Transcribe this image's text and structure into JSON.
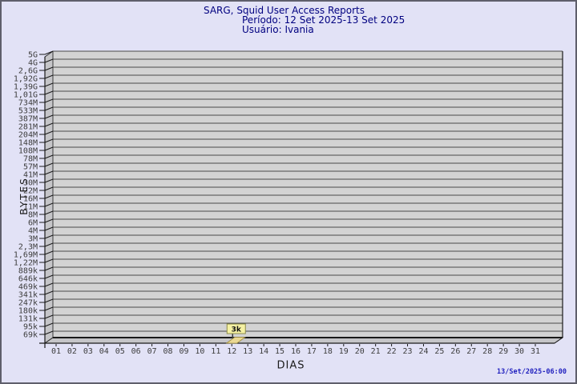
{
  "header": {
    "title": "SARG, Squid User Access Reports",
    "period": "Período: 12 Set 2025-13 Set 2025",
    "user": "Usuário: Ivania"
  },
  "footer": {
    "generated": "13/Set/2025-06:00"
  },
  "chart_data": {
    "type": "bar",
    "projection": "3d",
    "title": "SARG, Squid User Access Reports",
    "subtitle": "Período: 12 Set 2025-13 Set 2025",
    "user_label": "Usuário: Ivania",
    "xlabel": "DIAS",
    "ylabel": "BYTES",
    "y_scale": "log",
    "grid": true,
    "y_tick_labels": [
      "5G",
      "4G",
      "2,6G",
      "1,92G",
      "1,39G",
      "1,01G",
      "734M",
      "533M",
      "387M",
      "281M",
      "204M",
      "148M",
      "108M",
      "78M",
      "57M",
      "41M",
      "30M",
      "22M",
      "16M",
      "11M",
      "8M",
      "6M",
      "4M",
      "3M",
      "2,3M",
      "1,69M",
      "1,22M",
      "889k",
      "646k",
      "469k",
      "341k",
      "247k",
      "180k",
      "131k",
      "95k",
      "69k"
    ],
    "x_tick_labels": [
      "01",
      "02",
      "03",
      "04",
      "05",
      "06",
      "07",
      "08",
      "09",
      "10",
      "11",
      "12",
      "13",
      "14",
      "15",
      "16",
      "17",
      "18",
      "19",
      "20",
      "21",
      "22",
      "23",
      "24",
      "25",
      "26",
      "27",
      "28",
      "29",
      "30",
      "31"
    ],
    "bars": [
      {
        "x": "12",
        "value_label": "3k",
        "value_bytes": 3000
      }
    ],
    "colors": {
      "background": "#e2e2f6",
      "plot_bg": "#d3d3d3",
      "wall": "#c5c5c8",
      "grid_line": "#4a4a4a",
      "axis": "#1a1a1a",
      "title": "#000080",
      "tick_text": "#3d3d3d",
      "bar_fill": "#ead893",
      "bar_edge": "#a08d3c",
      "callout_fill": "#f5f1a3",
      "callout_edge": "#8b8b4a",
      "timestamp": "#2222bf"
    }
  }
}
